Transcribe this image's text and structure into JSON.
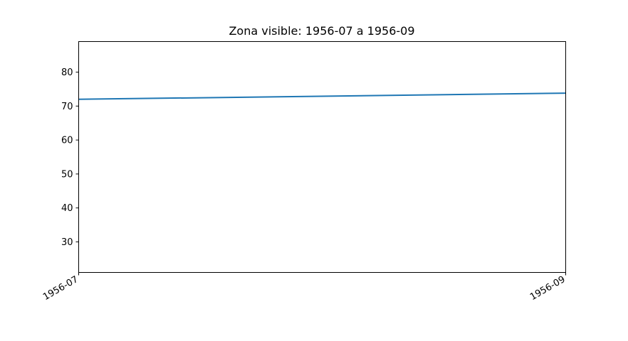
{
  "chart_data": {
    "type": "line",
    "title": "Zona visible: 1956-07 a 1956-09",
    "xlabel": "",
    "ylabel": "",
    "x_ticks": [
      "1956-07",
      "1956-09"
    ],
    "y_ticks": [
      30,
      40,
      50,
      60,
      70,
      80
    ],
    "xlim": [
      "1956-07",
      "1956-09"
    ],
    "ylim": [
      21,
      89
    ],
    "grid": false,
    "legend": "none",
    "series": [
      {
        "color": "#1f77b4",
        "x": [
          "1956-07",
          "1956-09"
        ],
        "y": [
          72,
          73.8
        ]
      }
    ]
  }
}
